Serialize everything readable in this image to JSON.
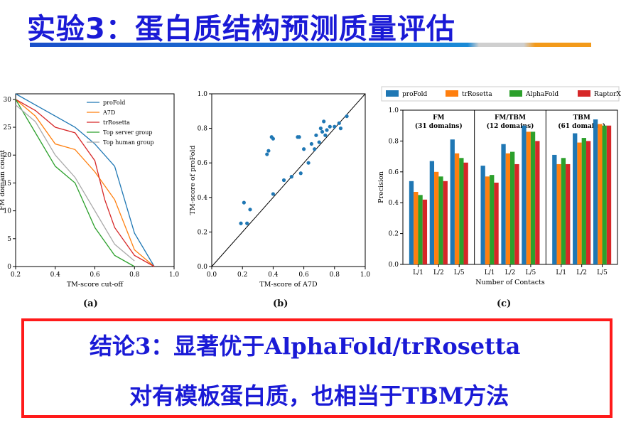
{
  "slide": {
    "title": "实验3：蛋白质结构预测质量评估",
    "conclusion_line1": "结论3：显著优于AlphaFold/trRosetta",
    "conclusion_line2": "对有模板蛋白质，也相当于TBM方法",
    "accent_colors": [
      "#1a1ad6",
      "#ff1a1a",
      "#1f77b4",
      "#ff7f0e",
      "#2ca02c",
      "#d62728"
    ]
  },
  "chart_data": [
    {
      "type": "line",
      "panel_label": "(a)",
      "xlabel": "TM-score cut-off",
      "ylabel": "FM domain count",
      "xlim": [
        0.2,
        1.0
      ],
      "ylim": [
        0,
        31
      ],
      "xticks": [
        "0.2",
        "0.4",
        "0.6",
        "0.8",
        "1.0"
      ],
      "yticks": [
        "0",
        "5",
        "10",
        "15",
        "20",
        "25",
        "30"
      ],
      "legend_position": "top-right",
      "series": [
        {
          "name": "proFold",
          "color": "#1f77b4",
          "x": [
            0.2,
            0.3,
            0.4,
            0.5,
            0.6,
            0.7,
            0.8,
            0.9
          ],
          "y": [
            31,
            29,
            27,
            25,
            22,
            18,
            6,
            0
          ]
        },
        {
          "name": "A7D",
          "color": "#ff7f0e",
          "x": [
            0.2,
            0.3,
            0.4,
            0.5,
            0.6,
            0.7,
            0.8,
            0.9
          ],
          "y": [
            30,
            27,
            22,
            21,
            17,
            12,
            3,
            0
          ]
        },
        {
          "name": "trRosetta",
          "color": "#d62728",
          "x": [
            0.2,
            0.3,
            0.4,
            0.5,
            0.6,
            0.65,
            0.7,
            0.8,
            0.9
          ],
          "y": [
            30,
            28,
            25,
            24,
            19,
            12,
            7,
            2,
            0
          ]
        },
        {
          "name": "Top server group",
          "color": "#2ca02c",
          "x": [
            0.2,
            0.3,
            0.4,
            0.5,
            0.6,
            0.7,
            0.8
          ],
          "y": [
            30,
            24,
            18,
            15,
            7,
            2,
            0
          ]
        },
        {
          "name": "Top human group",
          "color": "#aaaaaa",
          "x": [
            0.2,
            0.3,
            0.4,
            0.5,
            0.6,
            0.7,
            0.8
          ],
          "y": [
            29,
            26,
            20,
            16,
            10,
            4,
            1
          ]
        }
      ]
    },
    {
      "type": "scatter",
      "panel_label": "(b)",
      "xlabel": "TM-score of A7D",
      "ylabel": "TM-score of proFold",
      "xlim": [
        0,
        1.0
      ],
      "ylim": [
        0,
        1.0
      ],
      "xticks": [
        "0.0",
        "0.2",
        "0.4",
        "0.6",
        "0.8",
        "1.0"
      ],
      "yticks": [
        "0.0",
        "0.2",
        "0.4",
        "0.6",
        "0.8",
        "1.0"
      ],
      "diagonal": true,
      "color": "#1f77b4",
      "points": [
        [
          0.19,
          0.25
        ],
        [
          0.21,
          0.37
        ],
        [
          0.23,
          0.25
        ],
        [
          0.25,
          0.33
        ],
        [
          0.36,
          0.65
        ],
        [
          0.37,
          0.67
        ],
        [
          0.39,
          0.75
        ],
        [
          0.4,
          0.74
        ],
        [
          0.4,
          0.42
        ],
        [
          0.47,
          0.5
        ],
        [
          0.52,
          0.52
        ],
        [
          0.56,
          0.75
        ],
        [
          0.57,
          0.75
        ],
        [
          0.58,
          0.54
        ],
        [
          0.6,
          0.68
        ],
        [
          0.63,
          0.6
        ],
        [
          0.65,
          0.71
        ],
        [
          0.67,
          0.68
        ],
        [
          0.68,
          0.76
        ],
        [
          0.7,
          0.72
        ],
        [
          0.71,
          0.8
        ],
        [
          0.72,
          0.78
        ],
        [
          0.73,
          0.84
        ],
        [
          0.74,
          0.76
        ],
        [
          0.75,
          0.79
        ],
        [
          0.77,
          0.81
        ],
        [
          0.8,
          0.81
        ],
        [
          0.83,
          0.83
        ],
        [
          0.84,
          0.8
        ],
        [
          0.88,
          0.87
        ]
      ]
    },
    {
      "type": "bar",
      "panel_label": "(c)",
      "xlabel": "Number of Contacts",
      "ylabel": "Precision",
      "ylim": [
        0,
        1.0
      ],
      "yticks": [
        "0.0",
        "0.2",
        "0.4",
        "0.6",
        "0.8",
        "1.0"
      ],
      "legend_position": "top",
      "groups": [
        {
          "name": "FM",
          "subtitle": "(31 domains)"
        },
        {
          "name": "FM/TBM",
          "subtitle": "(12 domains)"
        },
        {
          "name": "TBM",
          "subtitle": "(61 domains)"
        }
      ],
      "categories": [
        "L/1",
        "L/2",
        "L/5"
      ],
      "series": [
        {
          "name": "proFold",
          "color": "#1f77b4",
          "values": [
            [
              0.54,
              0.67,
              0.81
            ],
            [
              0.64,
              0.78,
              0.9
            ],
            [
              0.71,
              0.85,
              0.94
            ]
          ]
        },
        {
          "name": "trRosetta",
          "color": "#ff7f0e",
          "values": [
            [
              0.47,
              0.6,
              0.72
            ],
            [
              0.57,
              0.72,
              0.86
            ],
            [
              0.65,
              0.79,
              0.91
            ]
          ]
        },
        {
          "name": "AlphaFold",
          "color": "#2ca02c",
          "values": [
            [
              0.45,
              0.57,
              0.69
            ],
            [
              0.58,
              0.73,
              0.86
            ],
            [
              0.69,
              0.82,
              0.9
            ]
          ]
        },
        {
          "name": "RaptorX",
          "color": "#d62728",
          "values": [
            [
              0.42,
              0.54,
              0.66
            ],
            [
              0.53,
              0.65,
              0.8
            ],
            [
              0.65,
              0.8,
              0.9
            ]
          ]
        }
      ]
    }
  ]
}
